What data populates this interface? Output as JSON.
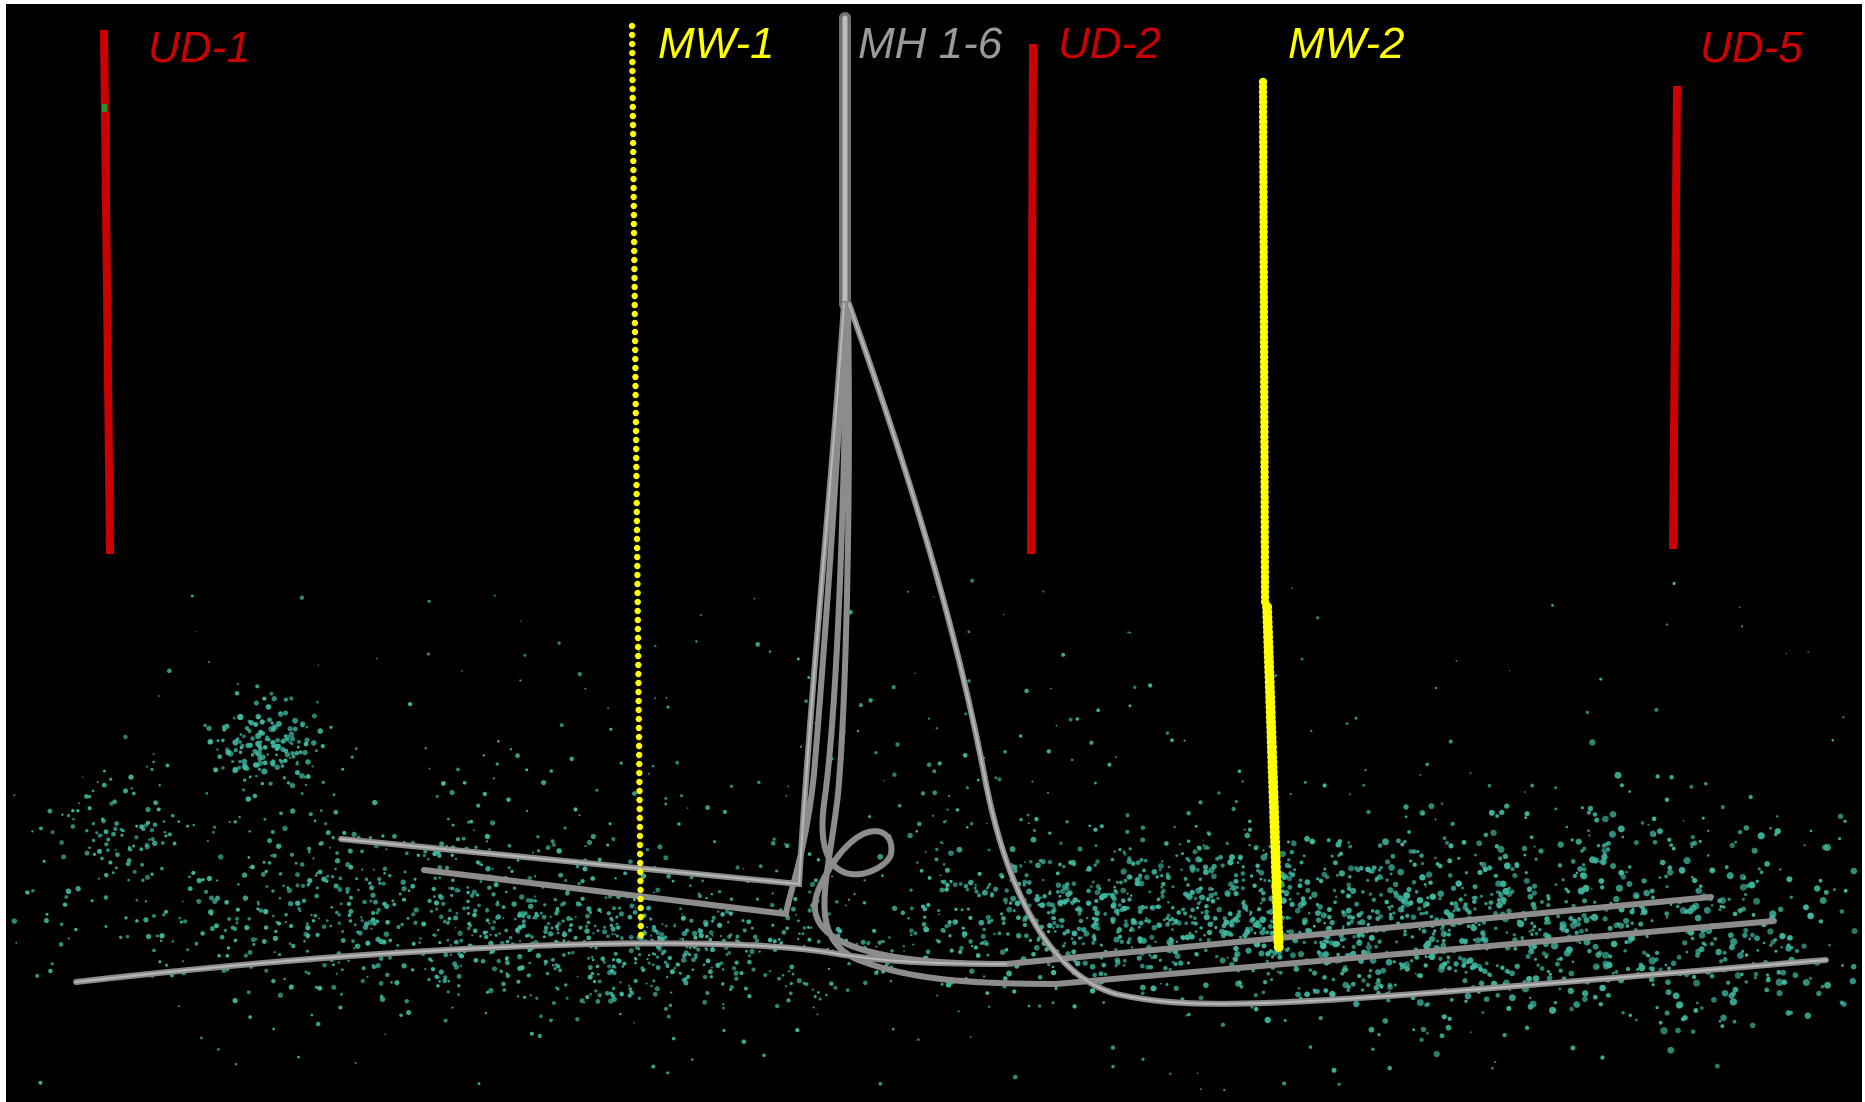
{
  "colors": {
    "background": "#000000",
    "frame": "#ffffff",
    "observation_well": "#cc0000",
    "monitoring_well": "#ffff00",
    "treatment_well": "#9a9a9a",
    "microseismic_event": "#3fb8a0"
  },
  "wells": {
    "ud1": {
      "label": "UD-1",
      "kind": "observation_well",
      "icon": "red-vertical-line"
    },
    "mw1": {
      "label": "MW-1",
      "kind": "monitoring_well",
      "icon": "yellow-dotted-line"
    },
    "mh": {
      "label": "MH 1-6",
      "kind": "treatment_well",
      "icon": "gray-tube"
    },
    "ud2": {
      "label": "UD-2",
      "kind": "observation_well",
      "icon": "red-vertical-line"
    },
    "mw2": {
      "label": "MW-2",
      "kind": "monitoring_well",
      "icon": "yellow-dotted-line"
    },
    "ud5": {
      "label": "UD-5",
      "kind": "observation_well",
      "icon": "red-vertical-line"
    }
  },
  "microseismic": {
    "icon": "teal-point-cloud"
  }
}
